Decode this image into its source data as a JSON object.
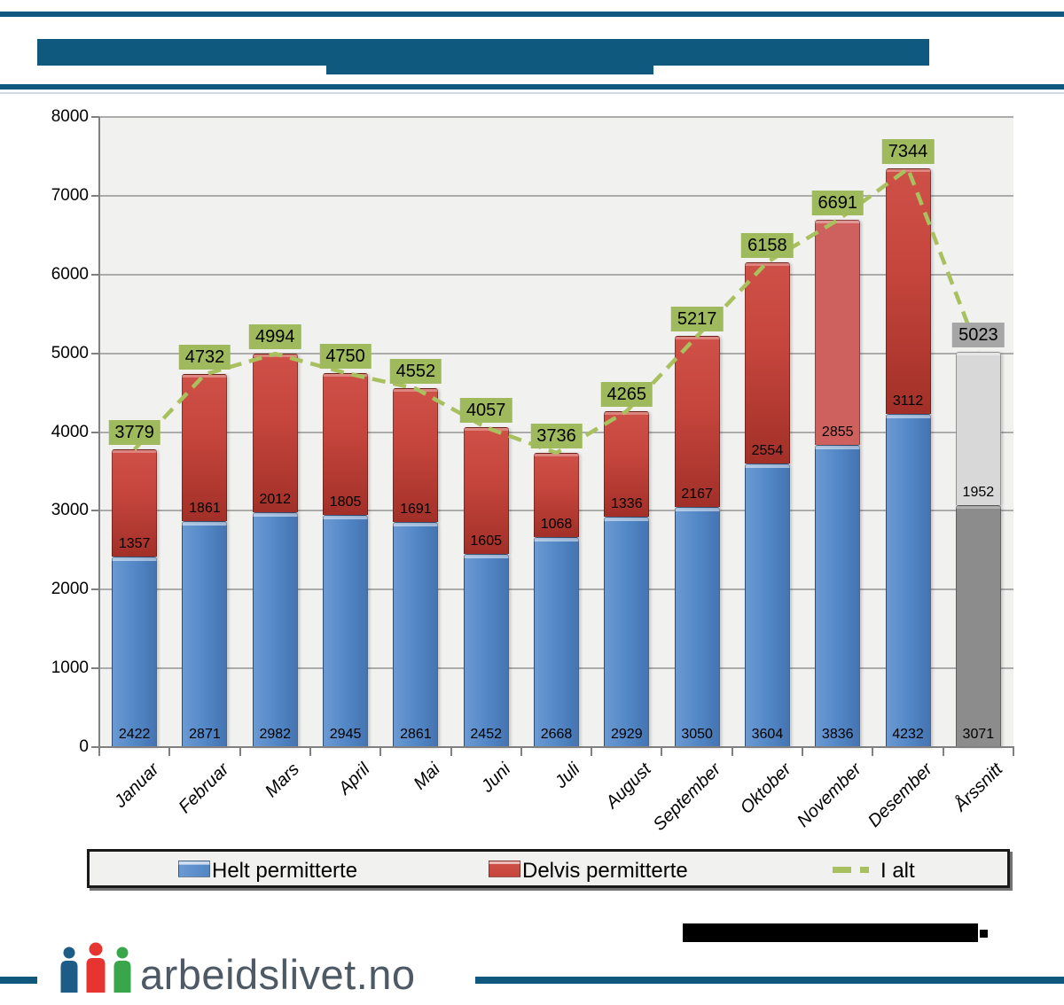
{
  "chart_data": {
    "type": "bar",
    "stacked": true,
    "categories": [
      "Januar",
      "Februar",
      "Mars",
      "April",
      "Mai",
      "Juni",
      "Juli",
      "August",
      "September",
      "Oktober",
      "November",
      "Desember",
      "Årssnitt"
    ],
    "series": [
      {
        "name": "Helt permitterte",
        "color": "#5186C5",
        "values": [
          2422,
          2871,
          2982,
          2945,
          2861,
          2452,
          2668,
          2929,
          3050,
          3604,
          3836,
          4232,
          3071
        ]
      },
      {
        "name": "Delvis permitterte",
        "color": "#C6463D",
        "values": [
          1357,
          1861,
          2012,
          1805,
          1691,
          1605,
          1068,
          1336,
          2167,
          2554,
          2855,
          3112,
          1952
        ]
      }
    ],
    "line_series": {
      "name": "I alt",
      "color": "#A9C05E",
      "dashed": true,
      "values": [
        3779,
        4732,
        4994,
        4750,
        4552,
        4057,
        3736,
        4265,
        5217,
        6158,
        6691,
        7344,
        5023
      ]
    },
    "total_label_bg": "#9FBA5C",
    "ylim": [
      0,
      8000
    ],
    "ytick_step": 1000,
    "yticks": [
      "0",
      "1000",
      "2000",
      "3000",
      "4000",
      "5000",
      "6000",
      "7000",
      "8000"
    ],
    "grid": true,
    "legend_position": "bottom",
    "category_styles": {
      "10": {
        "delvis_color": "#CE615D"
      },
      "12": {
        "helt_color": "#8C8C8C",
        "delvis_color": "#D8D8D8",
        "total_label_bg": "#A6A6A6"
      }
    }
  },
  "footer": {
    "logo_text": "arbeidslivet.no",
    "logo_icon": "three-people-icon",
    "logo_person_colors": [
      "#1D5C86",
      "#E63430",
      "#3AA64C"
    ]
  },
  "colors": {
    "accent_blue": "#0F587E",
    "plot_bg": "#F1F1F0",
    "grid": "#ABABAB",
    "axis": "#808080",
    "redaction_black": "#000000"
  }
}
